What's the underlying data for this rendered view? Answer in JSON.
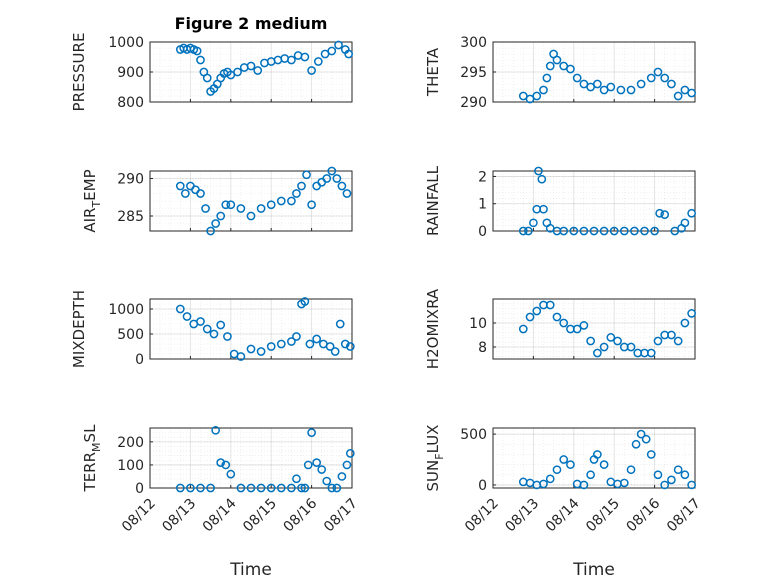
{
  "figure": {
    "title": "Figure 2 medium",
    "xlabel": "Time"
  },
  "colors": {
    "series": "#0072BD",
    "axes": "#262626"
  },
  "x_ticks": [
    "08/12",
    "08/13",
    "08/14",
    "08/15",
    "08/16",
    "08/17"
  ],
  "chart_data": [
    {
      "type": "scatter",
      "ylabel": "PRESSURE",
      "ylim": [
        800,
        1000
      ],
      "yticks": [
        800,
        900,
        1000
      ],
      "grid": true,
      "x": [
        "2012-08-12T18:00",
        "2012-08-12T20:00",
        "2012-08-12T22:00",
        "2012-08-13T00:00",
        "2012-08-13T02:00",
        "2012-08-13T04:00",
        "2012-08-13T06:00",
        "2012-08-13T08:00",
        "2012-08-13T10:00",
        "2012-08-13T12:00",
        "2012-08-13T14:00",
        "2012-08-13T16:00",
        "2012-08-13T18:00",
        "2012-08-13T20:00",
        "2012-08-13T22:00",
        "2012-08-14T00:00",
        "2012-08-14T04:00",
        "2012-08-14T08:00",
        "2012-08-14T12:00",
        "2012-08-14T16:00",
        "2012-08-14T20:00",
        "2012-08-15T00:00",
        "2012-08-15T04:00",
        "2012-08-15T08:00",
        "2012-08-15T12:00",
        "2012-08-15T16:00",
        "2012-08-15T20:00",
        "2012-08-16T00:00",
        "2012-08-16T04:00",
        "2012-08-16T08:00",
        "2012-08-16T12:00",
        "2012-08-16T16:00",
        "2012-08-16T20:00",
        "2012-08-16T22:00"
      ],
      "y": [
        975,
        980,
        975,
        980,
        975,
        970,
        940,
        900,
        880,
        835,
        845,
        860,
        880,
        895,
        900,
        890,
        900,
        915,
        920,
        905,
        930,
        935,
        940,
        945,
        940,
        955,
        950,
        905,
        935,
        960,
        970,
        990,
        975,
        960
      ]
    },
    {
      "type": "scatter",
      "ylabel": "THETA",
      "ylim": [
        290,
        300
      ],
      "yticks": [
        290,
        295,
        300
      ],
      "grid": true,
      "x": [
        "2012-08-12T18:00",
        "2012-08-12T22:00",
        "2012-08-13T02:00",
        "2012-08-13T06:00",
        "2012-08-13T08:00",
        "2012-08-13T10:00",
        "2012-08-13T12:00",
        "2012-08-13T14:00",
        "2012-08-13T18:00",
        "2012-08-13T22:00",
        "2012-08-14T02:00",
        "2012-08-14T06:00",
        "2012-08-14T10:00",
        "2012-08-14T14:00",
        "2012-08-14T18:00",
        "2012-08-14T22:00",
        "2012-08-15T04:00",
        "2012-08-15T10:00",
        "2012-08-15T16:00",
        "2012-08-15T22:00",
        "2012-08-16T02:00",
        "2012-08-16T06:00",
        "2012-08-16T10:00",
        "2012-08-16T14:00",
        "2012-08-16T18:00",
        "2012-08-16T22:00"
      ],
      "y": [
        291,
        290.5,
        291,
        292,
        294,
        296,
        298,
        297,
        296,
        295.5,
        294,
        293,
        292.5,
        293,
        292,
        292.5,
        292,
        292,
        293,
        294,
        295,
        294,
        293,
        291,
        292,
        291.5
      ]
    },
    {
      "type": "scatter",
      "ylabel": "AIR_TEMP",
      "ylim": [
        283,
        291
      ],
      "yticks": [
        285,
        290
      ],
      "grid": true,
      "x": [
        "2012-08-12T18:00",
        "2012-08-12T21:00",
        "2012-08-13T00:00",
        "2012-08-13T03:00",
        "2012-08-13T06:00",
        "2012-08-13T09:00",
        "2012-08-13T12:00",
        "2012-08-13T15:00",
        "2012-08-13T18:00",
        "2012-08-13T21:00",
        "2012-08-14T00:00",
        "2012-08-14T06:00",
        "2012-08-14T12:00",
        "2012-08-14T18:00",
        "2012-08-15T00:00",
        "2012-08-15T06:00",
        "2012-08-15T12:00",
        "2012-08-15T15:00",
        "2012-08-15T18:00",
        "2012-08-15T21:00",
        "2012-08-16T00:00",
        "2012-08-16T03:00",
        "2012-08-16T06:00",
        "2012-08-16T09:00",
        "2012-08-16T12:00",
        "2012-08-16T15:00",
        "2012-08-16T18:00",
        "2012-08-16T21:00"
      ],
      "y": [
        289,
        288,
        289,
        288.5,
        288,
        286,
        283,
        284,
        285,
        286.5,
        286.5,
        286,
        285,
        286,
        286.5,
        287,
        287,
        288,
        289,
        290.5,
        286.5,
        289,
        289.5,
        290,
        291,
        290,
        289,
        288
      ]
    },
    {
      "type": "scatter",
      "ylabel": "RAINFALL",
      "ylim": [
        0,
        2.2
      ],
      "yticks": [
        0,
        1,
        2
      ],
      "grid": true,
      "x": [
        "2012-08-12T18:00",
        "2012-08-12T21:00",
        "2012-08-13T00:00",
        "2012-08-13T02:00",
        "2012-08-13T03:00",
        "2012-08-13T05:00",
        "2012-08-13T06:00",
        "2012-08-13T08:00",
        "2012-08-13T10:00",
        "2012-08-13T14:00",
        "2012-08-13T18:00",
        "2012-08-14T00:00",
        "2012-08-14T06:00",
        "2012-08-14T12:00",
        "2012-08-14T18:00",
        "2012-08-15T00:00",
        "2012-08-15T06:00",
        "2012-08-15T12:00",
        "2012-08-15T18:00",
        "2012-08-16T00:00",
        "2012-08-16T03:00",
        "2012-08-16T06:00",
        "2012-08-16T12:00",
        "2012-08-16T16:00",
        "2012-08-16T18:00",
        "2012-08-16T22:00"
      ],
      "y": [
        0,
        0,
        0.3,
        0.8,
        2.2,
        1.9,
        0.8,
        0.3,
        0.1,
        0,
        0,
        0,
        0,
        0,
        0,
        0,
        0,
        0,
        0,
        0,
        0.65,
        0.6,
        0,
        0.1,
        0.3,
        0.65
      ]
    },
    {
      "type": "scatter",
      "ylabel": "MIXDEPTH",
      "ylim": [
        0,
        1200
      ],
      "yticks": [
        0,
        500,
        1000
      ],
      "grid": true,
      "x": [
        "2012-08-12T18:00",
        "2012-08-12T22:00",
        "2012-08-13T02:00",
        "2012-08-13T06:00",
        "2012-08-13T10:00",
        "2012-08-13T14:00",
        "2012-08-13T18:00",
        "2012-08-13T22:00",
        "2012-08-14T02:00",
        "2012-08-14T06:00",
        "2012-08-14T12:00",
        "2012-08-14T18:00",
        "2012-08-15T00:00",
        "2012-08-15T06:00",
        "2012-08-15T12:00",
        "2012-08-15T15:00",
        "2012-08-15T18:00",
        "2012-08-15T20:00",
        "2012-08-15T23:00",
        "2012-08-16T03:00",
        "2012-08-16T07:00",
        "2012-08-16T11:00",
        "2012-08-16T14:00",
        "2012-08-16T17:00",
        "2012-08-16T20:00",
        "2012-08-16T23:00"
      ],
      "y": [
        1000,
        850,
        700,
        750,
        600,
        500,
        680,
        450,
        100,
        50,
        200,
        150,
        250,
        300,
        350,
        450,
        1100,
        1150,
        300,
        400,
        300,
        250,
        150,
        700,
        300,
        250
      ]
    },
    {
      "type": "scatter",
      "ylabel": "H2OMIXRA",
      "ylim": [
        7,
        12
      ],
      "yticks": [
        8,
        10
      ],
      "grid": true,
      "x": [
        "2012-08-12T18:00",
        "2012-08-12T22:00",
        "2012-08-13T02:00",
        "2012-08-13T06:00",
        "2012-08-13T10:00",
        "2012-08-13T14:00",
        "2012-08-13T18:00",
        "2012-08-13T22:00",
        "2012-08-14T02:00",
        "2012-08-14T06:00",
        "2012-08-14T10:00",
        "2012-08-14T14:00",
        "2012-08-14T18:00",
        "2012-08-14T22:00",
        "2012-08-15T02:00",
        "2012-08-15T06:00",
        "2012-08-15T10:00",
        "2012-08-15T14:00",
        "2012-08-15T18:00",
        "2012-08-15T22:00",
        "2012-08-16T02:00",
        "2012-08-16T06:00",
        "2012-08-16T10:00",
        "2012-08-16T14:00",
        "2012-08-16T18:00",
        "2012-08-16T22:00"
      ],
      "y": [
        9.5,
        10.5,
        11,
        11.5,
        11.5,
        10.5,
        10,
        9.5,
        9.5,
        9.8,
        8.5,
        7.5,
        8,
        8.8,
        8.5,
        8,
        8,
        7.5,
        7.5,
        7.5,
        8.5,
        9,
        9,
        8.5,
        10,
        10.8
      ]
    },
    {
      "type": "scatter",
      "ylabel": "TERR_MSL",
      "ylim": [
        0,
        260
      ],
      "yticks": [
        0,
        100,
        200
      ],
      "grid": true,
      "x": [
        "2012-08-12T18:00",
        "2012-08-13T00:00",
        "2012-08-13T06:00",
        "2012-08-13T12:00",
        "2012-08-13T15:00",
        "2012-08-13T18:00",
        "2012-08-13T21:00",
        "2012-08-14T00:00",
        "2012-08-14T06:00",
        "2012-08-14T12:00",
        "2012-08-14T18:00",
        "2012-08-15T00:00",
        "2012-08-15T06:00",
        "2012-08-15T12:00",
        "2012-08-15T15:00",
        "2012-08-15T18:00",
        "2012-08-15T20:00",
        "2012-08-15T22:00",
        "2012-08-16T00:00",
        "2012-08-16T03:00",
        "2012-08-16T06:00",
        "2012-08-16T09:00",
        "2012-08-16T12:00",
        "2012-08-16T15:00",
        "2012-08-16T18:00",
        "2012-08-16T21:00",
        "2012-08-16T23:00"
      ],
      "y": [
        0,
        0,
        0,
        0,
        250,
        110,
        100,
        60,
        0,
        0,
        0,
        0,
        0,
        0,
        40,
        0,
        0,
        100,
        240,
        110,
        80,
        30,
        0,
        0,
        50,
        100,
        150
      ]
    },
    {
      "type": "scatter",
      "ylabel": "SUN_FLUX",
      "ylim": [
        -30,
        560
      ],
      "yticks": [
        0,
        500
      ],
      "grid": true,
      "x": [
        "2012-08-12T18:00",
        "2012-08-12T22:00",
        "2012-08-13T02:00",
        "2012-08-13T06:00",
        "2012-08-13T10:00",
        "2012-08-13T14:00",
        "2012-08-13T18:00",
        "2012-08-13T22:00",
        "2012-08-14T02:00",
        "2012-08-14T06:00",
        "2012-08-14T10:00",
        "2012-08-14T12:00",
        "2012-08-14T14:00",
        "2012-08-14T18:00",
        "2012-08-14T22:00",
        "2012-08-15T02:00",
        "2012-08-15T06:00",
        "2012-08-15T10:00",
        "2012-08-15T13:00",
        "2012-08-15T16:00",
        "2012-08-15T19:00",
        "2012-08-15T22:00",
        "2012-08-16T02:00",
        "2012-08-16T06:00",
        "2012-08-16T10:00",
        "2012-08-16T14:00",
        "2012-08-16T18:00",
        "2012-08-16T22:00"
      ],
      "y": [
        30,
        20,
        0,
        10,
        60,
        150,
        250,
        200,
        10,
        0,
        100,
        250,
        300,
        200,
        30,
        10,
        20,
        150,
        400,
        500,
        450,
        300,
        100,
        0,
        50,
        150,
        100,
        0
      ]
    }
  ]
}
